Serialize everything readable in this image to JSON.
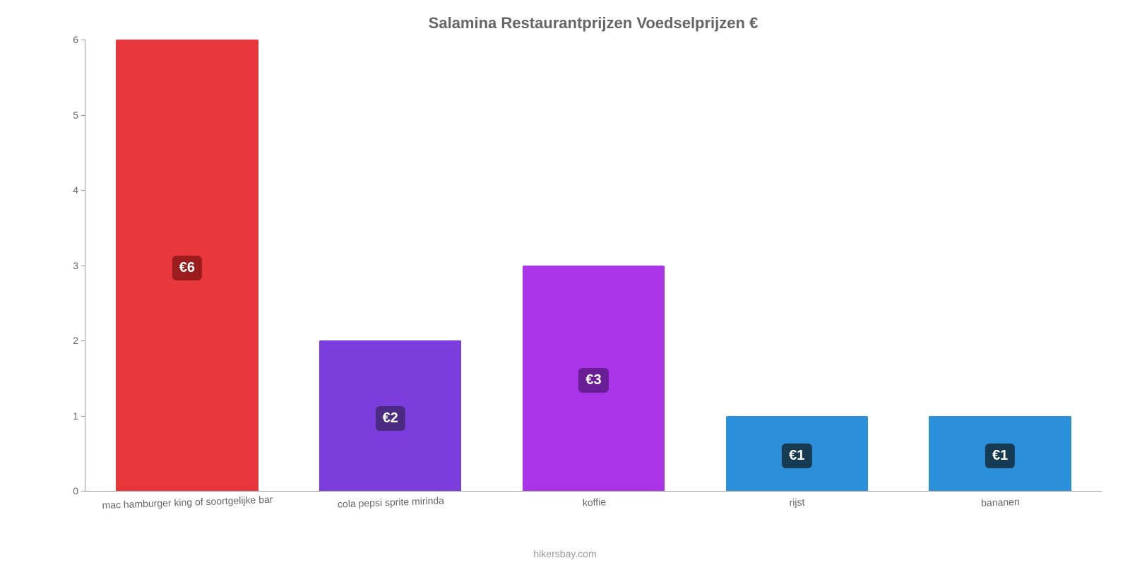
{
  "chart": {
    "type": "bar",
    "title": "Salamina Restaurantprijzen Voedselprijzen €",
    "title_fontsize": 22,
    "title_color": "#666666",
    "categories": [
      "mac hamburger king of soortgelijke bar",
      "cola pepsi sprite mirinda",
      "koffie",
      "rijst",
      "bananen"
    ],
    "values": [
      6,
      2,
      3,
      1,
      1
    ],
    "value_labels": [
      "€6",
      "€2",
      "€3",
      "€1",
      "€1"
    ],
    "bar_colors": [
      "#e8373c",
      "#7b3ddb",
      "#a934e8",
      "#2b90d9",
      "#2b90d9"
    ],
    "badge_bg_colors": [
      "#9b1c1c",
      "#4b2a82",
      "#6a1e96",
      "#163a52",
      "#163a52"
    ],
    "badge_text_color": "#ffffff",
    "value_label_fontsize": 20,
    "ylim": [
      0,
      6
    ],
    "ytick_step": 1,
    "yticks": [
      0,
      1,
      2,
      3,
      4,
      5,
      6
    ],
    "ytick_labels": [
      "0",
      "1",
      "2",
      "3",
      "4",
      "5",
      "6"
    ],
    "xlabel_fontsize": 14,
    "xlabel_color": "#666666",
    "xlabel_rotation_deg": -2,
    "ytick_fontsize": 14,
    "ytick_color": "#666666",
    "axis_color": "#999999",
    "background_color": "#ffffff",
    "bar_width_pct": 70,
    "attribution": "hikersbay.com",
    "attribution_color": "#999999",
    "attribution_fontsize": 14
  }
}
